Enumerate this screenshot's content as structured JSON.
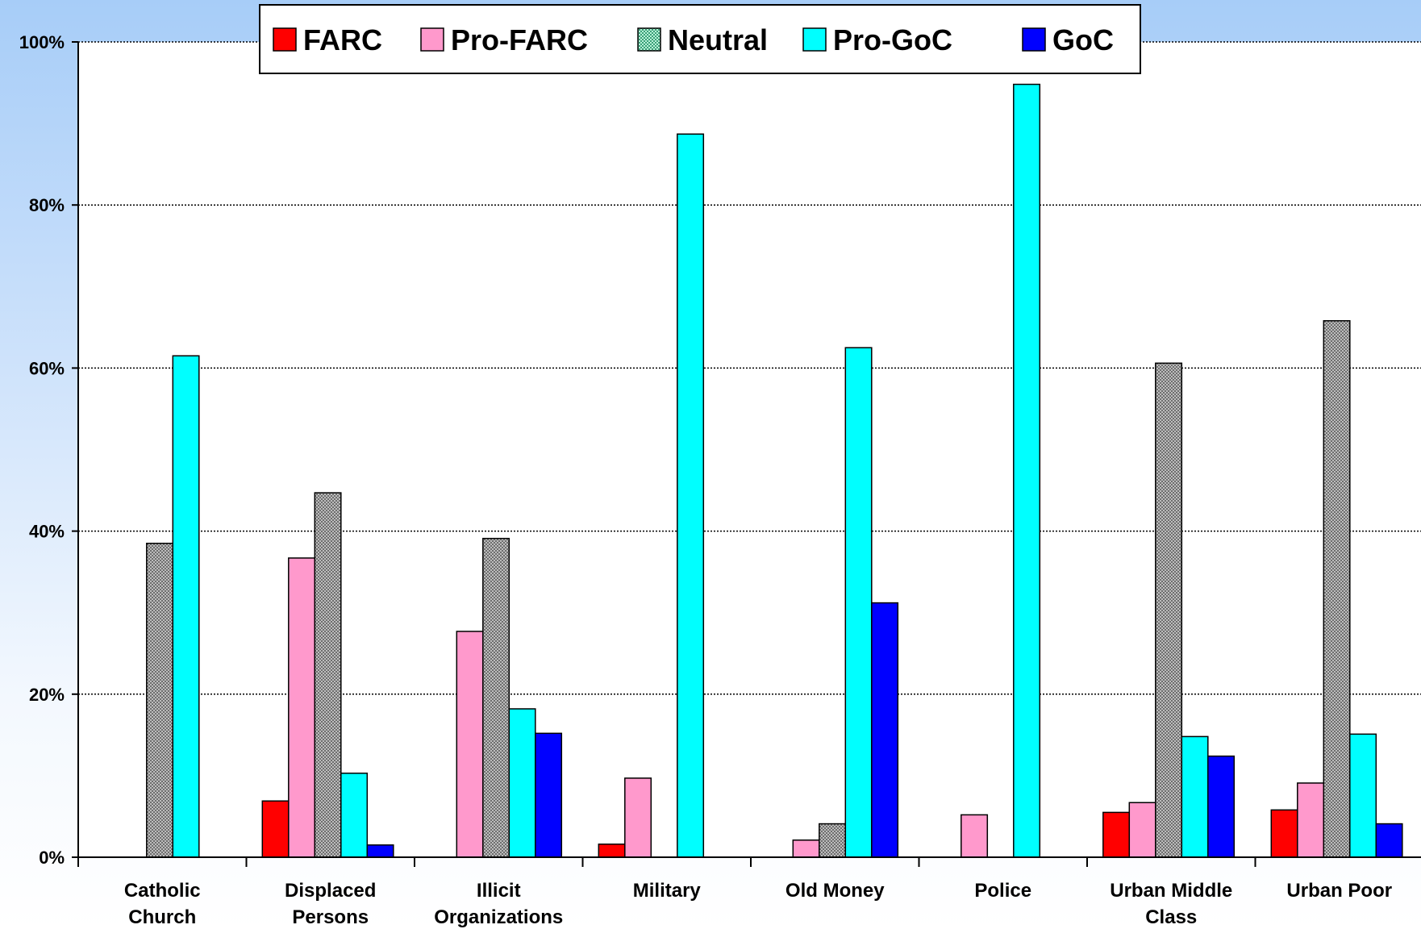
{
  "chart_data": {
    "type": "bar",
    "categories": [
      "Catholic Church",
      "Displaced Persons",
      "Illicit Organizations",
      "Military",
      "Old Money",
      "Police",
      "Urban Middle Class",
      "Urban Poor"
    ],
    "series": [
      {
        "name": "FARC",
        "color": "#ff0000",
        "values": [
          0,
          6.9,
          0,
          1.6,
          0,
          0,
          5.5,
          5.8
        ]
      },
      {
        "name": "Pro-FARC",
        "color": "#ff99cc",
        "values": [
          0,
          36.7,
          27.7,
          9.7,
          2.1,
          5.2,
          6.7,
          9.1
        ]
      },
      {
        "name": "Neutral",
        "color": "#a0a0a0",
        "values": [
          38.5,
          44.7,
          39.1,
          0,
          4.1,
          0,
          60.6,
          65.8
        ]
      },
      {
        "name": "Pro-GoC",
        "color": "#00ffff",
        "values": [
          61.5,
          10.3,
          18.2,
          88.7,
          62.5,
          94.8,
          14.8,
          15.1
        ]
      },
      {
        "name": "GoC",
        "color": "#0000ff",
        "values": [
          0,
          1.5,
          15.2,
          0,
          31.2,
          0,
          12.4,
          4.1
        ]
      }
    ],
    "ylim": [
      0,
      100
    ],
    "yticks": [
      "0%",
      "20%",
      "40%",
      "60%",
      "80%",
      "100%"
    ],
    "grid": true,
    "legend_position": "top"
  }
}
